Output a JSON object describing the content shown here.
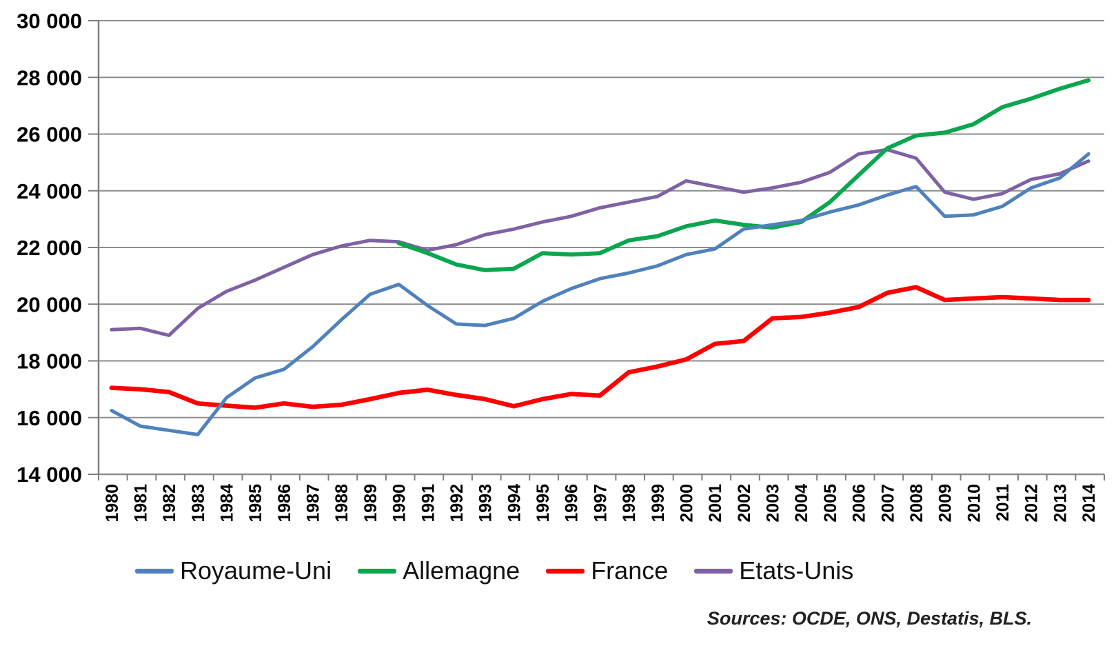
{
  "page": {
    "background": "#ffffff"
  },
  "source_note": "Sources: OCDE, ONS, Destatis, BLS.",
  "chart_data": {
    "type": "line",
    "title": "",
    "xlabel": "",
    "ylabel": "",
    "grid": true,
    "legend_position": "bottom",
    "colors": {
      "gridline": "#8c8c8c",
      "axis": "#7f7f7f",
      "tick_text": "#000000"
    },
    "x_tick_labels": [
      "1980",
      "1981",
      "1982",
      "1983",
      "1984",
      "1985",
      "1986",
      "1987",
      "1988",
      "1989",
      "1990",
      "1991",
      "1992",
      "1993",
      "1994",
      "1995",
      "1996",
      "1997",
      "1998",
      "1999",
      "2000",
      "2001",
      "2002",
      "2003",
      "2004",
      "2005",
      "2006",
      "2007",
      "2008",
      "2009",
      "2010",
      "2011",
      "2012",
      "2013",
      "2014"
    ],
    "y_axis": {
      "min": 14000,
      "max": 30000,
      "step": 2000,
      "tick_labels": [
        "30 000",
        "28 000",
        "26 000",
        "24 000",
        "22 000",
        "20 000",
        "18 000",
        "16 000",
        "14 000"
      ]
    },
    "series": [
      {
        "name": "Royaume-Uni",
        "color": "#4f81bd",
        "stroke_width": 5,
        "values": [
          16250,
          15700,
          15550,
          15400,
          16700,
          17400,
          17700,
          18500,
          19450,
          20350,
          20700,
          19950,
          19300,
          19250,
          19500,
          20100,
          20550,
          20900,
          21100,
          21350,
          21750,
          21950,
          22650,
          22800,
          22950,
          23250,
          23500,
          23850,
          24150,
          23100,
          23150,
          23450,
          24100,
          24450,
          25300
        ]
      },
      {
        "name": "Allemagne",
        "color": "#0aa64e",
        "stroke_width": 6,
        "values": [
          null,
          null,
          null,
          null,
          null,
          null,
          null,
          null,
          null,
          null,
          22150,
          21800,
          21400,
          21200,
          21250,
          21800,
          21750,
          21800,
          22250,
          22400,
          22750,
          22950,
          22800,
          22700,
          22900,
          23600,
          24550,
          25500,
          25950,
          26050,
          26350,
          26950,
          27250,
          27600,
          27900
        ]
      },
      {
        "name": "France",
        "color": "#fe0000",
        "stroke_width": 6.5,
        "values": [
          17050,
          17000,
          16900,
          16500,
          16420,
          16350,
          16500,
          16380,
          16450,
          16650,
          16870,
          16980,
          16800,
          16650,
          16400,
          16650,
          16830,
          16780,
          17600,
          17800,
          18050,
          18600,
          18700,
          19500,
          19550,
          19700,
          19900,
          20400,
          20600,
          20150,
          20200,
          20250,
          20200,
          20150,
          20150
        ]
      },
      {
        "name": "Etats-Unis",
        "color": "#7e62a3",
        "stroke_width": 5,
        "values": [
          19100,
          19150,
          18900,
          19850,
          20450,
          20850,
          21300,
          21750,
          22050,
          22250,
          22200,
          21900,
          22100,
          22450,
          22650,
          22900,
          23100,
          23400,
          23600,
          23800,
          24350,
          24150,
          23950,
          24100,
          24300,
          24650,
          25300,
          25450,
          25150,
          23950,
          23700,
          23900,
          24400,
          24600,
          25050
        ]
      }
    ]
  }
}
